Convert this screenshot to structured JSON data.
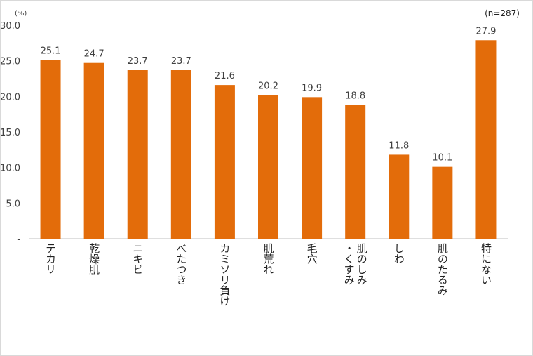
{
  "chart_data": {
    "type": "bar",
    "unit": "(%)",
    "note": "(n=287)",
    "categories": [
      "テカリ",
      "乾燥肌",
      "ニキビ",
      "べたつき",
      "カミソリ負け",
      "肌荒れ",
      "毛穴",
      "肌のしみ・くすみ",
      "しわ",
      "肌のたるみ",
      "特にない"
    ],
    "category_lines": [
      [
        "テカリ"
      ],
      [
        "乾燥肌"
      ],
      [
        "ニキビ"
      ],
      [
        "べたつき"
      ],
      [
        "カミソリ負け"
      ],
      [
        "肌荒れ"
      ],
      [
        "毛穴"
      ],
      [
        "肌のしみ",
        "・くすみ"
      ],
      [
        "しわ"
      ],
      [
        "肌のたるみ"
      ],
      [
        "特にない"
      ]
    ],
    "values": [
      25.1,
      24.7,
      23.7,
      23.7,
      21.6,
      20.2,
      19.9,
      18.8,
      11.8,
      10.1,
      27.9
    ],
    "value_labels": [
      "25.1",
      "24.7",
      "23.7",
      "23.7",
      "21.6",
      "20.2",
      "19.9",
      "18.8",
      "11.8",
      "10.1",
      "27.9"
    ],
    "ylim": [
      0,
      30
    ],
    "y_ticks": [
      0,
      5,
      10,
      15,
      20,
      25,
      30
    ],
    "y_tick_labels": [
      "-",
      "5.0",
      "10.0",
      "15.0",
      "20.0",
      "25.0",
      "30.0"
    ],
    "grid": false,
    "legend": "none",
    "bar_color": "#E36C0A",
    "axis_color": "#bfbfbf"
  }
}
